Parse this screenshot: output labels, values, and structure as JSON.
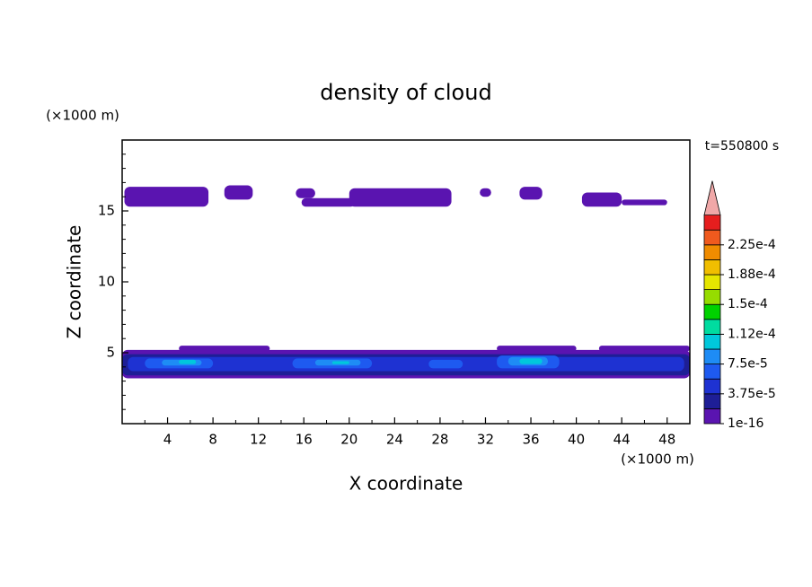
{
  "chart_data": {
    "type": "contour",
    "title": "density of cloud",
    "annotation": "t=550800 s",
    "x_label": "X coordinate",
    "y_label": "Z coordinate",
    "x_unit": "(×1000 m)",
    "y_unit": "(×1000 m)",
    "xlim": [
      0,
      50
    ],
    "xticks": [
      4,
      8,
      12,
      16,
      20,
      24,
      28,
      32,
      36,
      40,
      44,
      48
    ],
    "ylim": [
      0,
      20
    ],
    "yticks": [
      5,
      10,
      15
    ],
    "colorbar": {
      "colors": [
        "#5a14b0",
        "#1e1e96",
        "#1e32d2",
        "#1e5af0",
        "#1e8cf5",
        "#00c8dc",
        "#00dca0",
        "#00d200",
        "#96dc00",
        "#e6e600",
        "#f0be00",
        "#f08c00",
        "#f05a1e",
        "#e61e1e"
      ],
      "extend_color": "#f0a8a8",
      "ticks": [
        {
          "value": 1e-16,
          "label": "1e-16"
        },
        {
          "value": 3.75e-05,
          "label": "3.75e-5"
        },
        {
          "value": 7.5e-05,
          "label": "7.5e-5"
        },
        {
          "value": 0.000112,
          "label": "1.12e-4"
        },
        {
          "value": 0.00015,
          "label": "1.5e-4"
        },
        {
          "value": 0.000188,
          "label": "1.88e-4"
        },
        {
          "value": 0.000225,
          "label": "2.25e-4"
        }
      ]
    },
    "patches": [
      {
        "x": [
          0.2,
          7.6
        ],
        "z": [
          15.3,
          16.7
        ],
        "level": 0
      },
      {
        "x": [
          9,
          11.5
        ],
        "z": [
          15.8,
          16.8
        ],
        "level": 0
      },
      {
        "x": [
          15.3,
          17
        ],
        "z": [
          15.9,
          16.6
        ],
        "level": 0
      },
      {
        "x": [
          15.8,
          20.5
        ],
        "z": [
          15.3,
          15.9
        ],
        "level": 0
      },
      {
        "x": [
          20,
          29
        ],
        "z": [
          15.3,
          16.6
        ],
        "level": 0
      },
      {
        "x": [
          31.5,
          32.5
        ],
        "z": [
          16,
          16.6
        ],
        "level": 0
      },
      {
        "x": [
          35,
          37
        ],
        "z": [
          15.8,
          16.7
        ],
        "level": 0
      },
      {
        "x": [
          40.5,
          44
        ],
        "z": [
          15.3,
          16.3
        ],
        "level": 0
      },
      {
        "x": [
          44,
          48
        ],
        "z": [
          15.4,
          15.8
        ],
        "level": 0
      },
      {
        "x": [
          0,
          50
        ],
        "z": [
          3.2,
          5.2
        ],
        "level": 0
      },
      {
        "x": [
          5,
          13
        ],
        "z": [
          5.1,
          5.5
        ],
        "level": 0
      },
      {
        "x": [
          33,
          40
        ],
        "z": [
          5.1,
          5.5
        ],
        "level": 0
      },
      {
        "x": [
          42,
          50
        ],
        "z": [
          5.1,
          5.5
        ],
        "level": 0
      },
      {
        "x": [
          0,
          50
        ],
        "z": [
          3.4,
          4.9
        ],
        "level": 1
      },
      {
        "x": [
          0.5,
          49.5
        ],
        "z": [
          3.7,
          4.7
        ],
        "level": 2
      },
      {
        "x": [
          2,
          8
        ],
        "z": [
          3.9,
          4.6
        ],
        "level": 3
      },
      {
        "x": [
          15,
          22
        ],
        "z": [
          3.9,
          4.6
        ],
        "level": 3
      },
      {
        "x": [
          27,
          30
        ],
        "z": [
          3.9,
          4.5
        ],
        "level": 3
      },
      {
        "x": [
          33,
          38.5
        ],
        "z": [
          3.9,
          4.8
        ],
        "level": 3
      },
      {
        "x": [
          3.5,
          7
        ],
        "z": [
          4.1,
          4.5
        ],
        "level": 4
      },
      {
        "x": [
          17,
          21
        ],
        "z": [
          4.1,
          4.5
        ],
        "level": 4
      },
      {
        "x": [
          34,
          37.5
        ],
        "z": [
          4.1,
          4.7
        ],
        "level": 4
      },
      {
        "x": [
          5,
          6.5
        ],
        "z": [
          4.2,
          4.5
        ],
        "level": 5
      },
      {
        "x": [
          18.5,
          20
        ],
        "z": [
          4.2,
          4.4
        ],
        "level": 5
      },
      {
        "x": [
          35,
          37
        ],
        "z": [
          4.2,
          4.6
        ],
        "level": 5
      }
    ]
  }
}
